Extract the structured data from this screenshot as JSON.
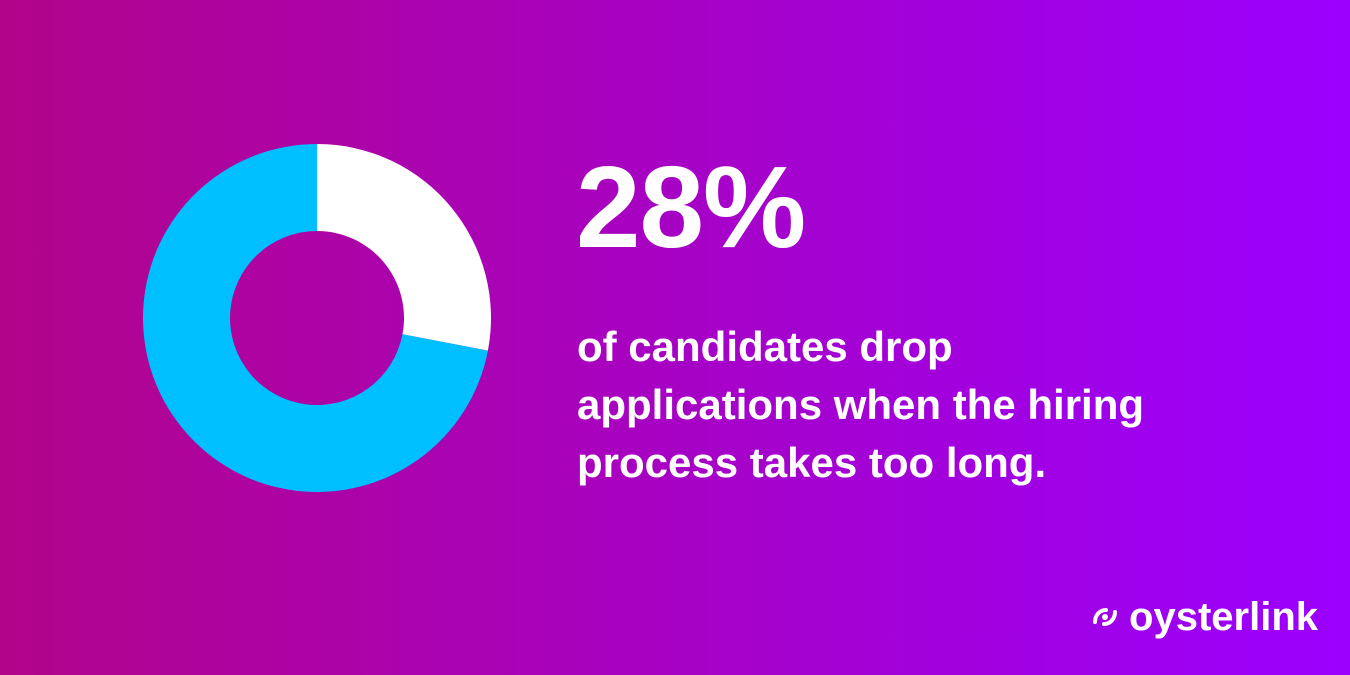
{
  "colors": {
    "background_start": "#b2048a",
    "background_end": "#9b00ff",
    "donut_primary": "#00bfff",
    "donut_secondary": "#ffffff",
    "text": "#ffffff"
  },
  "stat": {
    "value": "28%",
    "caption_lines": [
      "of candidates drop",
      "applications when the hiring",
      "process takes too long."
    ]
  },
  "brand": {
    "name": "oysterlink",
    "icon": "oysterlink-logo-icon"
  },
  "chart_data": {
    "type": "pie",
    "variant": "donut",
    "slices": [
      {
        "value": 28,
        "color": "#ffffff"
      },
      {
        "value": 72,
        "color": "#00bfff"
      }
    ],
    "start": "top",
    "direction": "clockwise"
  }
}
